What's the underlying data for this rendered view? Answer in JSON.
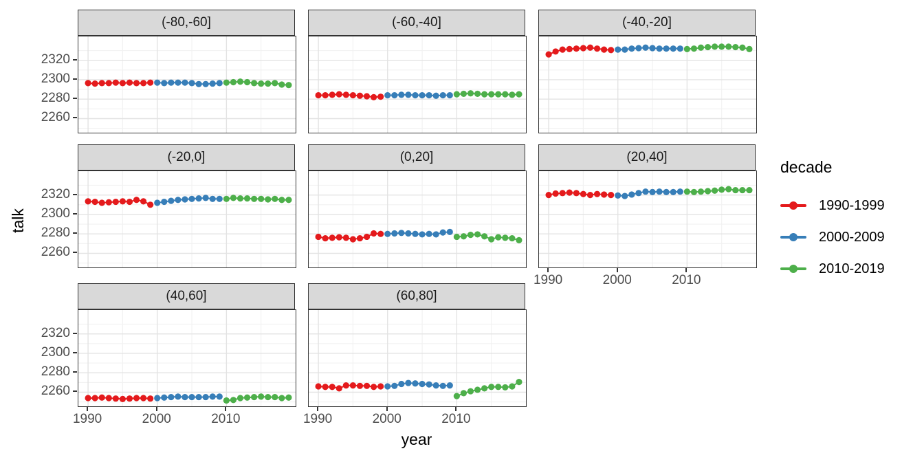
{
  "figure": {
    "y_axis_title": "talk",
    "x_axis_title": "year",
    "legend": {
      "title": "decade",
      "items": [
        {
          "label": "1990-1999",
          "color": "#E41A1C"
        },
        {
          "label": "2000-2009",
          "color": "#377EB8"
        },
        {
          "label": "2010-2019",
          "color": "#4DAF4A"
        }
      ]
    },
    "colors": {
      "strip_background": "#d9d9d9",
      "panel_border": "#333333",
      "grid_major": "#e3e3e3",
      "grid_minor": "#f2f2f2",
      "tick_label": "#4d4d4d"
    }
  },
  "chart_data": {
    "type": "scatter",
    "title": "",
    "xlabel": "year",
    "ylabel": "talk",
    "legend_title": "decade",
    "legend_position": "right",
    "grid": true,
    "facet_labels": [
      "(-80,-60]",
      "(-60,-40]",
      "(-40,-20]",
      "(-20,0]",
      "(0,20]",
      "(20,40]",
      "(40,60]",
      "(60,80]"
    ],
    "x_ticks": [
      1990,
      2000,
      2010
    ],
    "x_minor_ticks": [
      1995,
      2005,
      2015
    ],
    "y_ticks": [
      2260,
      2280,
      2300,
      2320
    ],
    "y_minor_ticks": [
      2250,
      2270,
      2290,
      2310,
      2330
    ],
    "xlim": [
      1988.6,
      2020.0
    ],
    "ylim": [
      2245.5,
      2344.5
    ],
    "years_by_decade": {
      "1990-1999": [
        1990,
        1991,
        1992,
        1993,
        1994,
        1995,
        1996,
        1997,
        1998,
        1999
      ],
      "2000-2009": [
        2000,
        2001,
        2002,
        2003,
        2004,
        2005,
        2006,
        2007,
        2008,
        2009
      ],
      "2010-2019": [
        2010,
        2011,
        2012,
        2013,
        2014,
        2015,
        2016,
        2017,
        2018,
        2019
      ]
    },
    "facets": [
      {
        "label": "(-80,-60]",
        "series": [
          {
            "name": "1990-1999",
            "y": [
              2296.5,
              2296,
              2296.5,
              2296.5,
              2297,
              2296.5,
              2297,
              2296.5,
              2296.5,
              2297
            ]
          },
          {
            "name": "2000-2009",
            "y": [
              2297,
              2296.5,
              2297,
              2297,
              2297,
              2296.5,
              2295.5,
              2295.5,
              2296,
              2296.5
            ]
          },
          {
            "name": "2010-2019",
            "y": [
              2297,
              2297.5,
              2298,
              2297.5,
              2296.5,
              2296,
              2296,
              2296.5,
              2295,
              2294.5
            ]
          }
        ]
      },
      {
        "label": "(-60,-40]",
        "series": [
          {
            "name": "1990-1999",
            "y": [
              2284,
              2284,
              2284.5,
              2285,
              2284.5,
              2284,
              2283.5,
              2283,
              2282,
              2282.5
            ]
          },
          {
            "name": "2000-2009",
            "y": [
              2284,
              2284,
              2284.5,
              2284.5,
              2284,
              2284,
              2284,
              2283.5,
              2284,
              2284
            ]
          },
          {
            "name": "2010-2019",
            "y": [
              2285,
              2285.5,
              2286,
              2285.5,
              2285,
              2285,
              2285,
              2285,
              2284.5,
              2285
            ]
          }
        ]
      },
      {
        "label": "(-40,-20]",
        "series": [
          {
            "name": "1990-1999",
            "y": [
              2326,
              2329,
              2331,
              2331.5,
              2332,
              2332.5,
              2333,
              2332,
              2331,
              2330.5
            ]
          },
          {
            "name": "2000-2009",
            "y": [
              2331,
              2331,
              2332,
              2332.5,
              2333,
              2332.5,
              2332,
              2332,
              2332,
              2332
            ]
          },
          {
            "name": "2010-2019",
            "y": [
              2331.5,
              2332,
              2333,
              2333.5,
              2334,
              2334,
              2334,
              2333.5,
              2333,
              2331.5
            ]
          }
        ]
      },
      {
        "label": "(-20,0]",
        "series": [
          {
            "name": "1990-1999",
            "y": [
              2313.5,
              2313,
              2312,
              2312.5,
              2313,
              2313.5,
              2313,
              2315,
              2313.5,
              2310
            ]
          },
          {
            "name": "2000-2009",
            "y": [
              2312,
              2313,
              2314,
              2315,
              2315.5,
              2316,
              2316.5,
              2317,
              2316,
              2316
            ]
          },
          {
            "name": "2010-2019",
            "y": [
              2316,
              2317,
              2316.5,
              2316.5,
              2316,
              2316,
              2315.5,
              2316,
              2315,
              2315
            ]
          }
        ]
      },
      {
        "label": "(0,20]",
        "series": [
          {
            "name": "1990-1999",
            "y": [
              2277,
              2275.5,
              2276,
              2276.5,
              2276,
              2274.5,
              2275.5,
              2277,
              2280.5,
              2280
            ]
          },
          {
            "name": "2000-2009",
            "y": [
              2280,
              2280.5,
              2281,
              2280.5,
              2280,
              2279.5,
              2280,
              2279.5,
              2281.5,
              2282
            ]
          },
          {
            "name": "2010-2019",
            "y": [
              2277,
              2277.5,
              2279,
              2279.5,
              2277.5,
              2274.5,
              2276.5,
              2276,
              2275.5,
              2273.5
            ]
          }
        ]
      },
      {
        "label": "(20,40]",
        "series": [
          {
            "name": "1990-1999",
            "y": [
              2320,
              2321.5,
              2322,
              2322.5,
              2322,
              2321,
              2320,
              2321,
              2320.5,
              2320
            ]
          },
          {
            "name": "2000-2009",
            "y": [
              2319.5,
              2319,
              2320.5,
              2322,
              2323.5,
              2323,
              2323.5,
              2323,
              2323,
              2323.5
            ]
          },
          {
            "name": "2010-2019",
            "y": [
              2323.5,
              2323,
              2323.5,
              2324,
              2324.5,
              2325.5,
              2326,
              2325,
              2325,
              2325
            ]
          }
        ]
      },
      {
        "label": "(40,60]",
        "series": [
          {
            "name": "1990-1999",
            "y": [
              2254,
              2254,
              2254.5,
              2254,
              2253.5,
              2253,
              2253.5,
              2254,
              2254,
              2253.5
            ]
          },
          {
            "name": "2000-2009",
            "y": [
              2254,
              2254.5,
              2255,
              2255.5,
              2255,
              2255,
              2255,
              2255,
              2255.5,
              2255.5
            ]
          },
          {
            "name": "2010-2019",
            "y": [
              2251.5,
              2252,
              2254,
              2254.5,
              2255,
              2255.5,
              2255,
              2255,
              2254,
              2254.5
            ]
          }
        ]
      },
      {
        "label": "(60,80]",
        "series": [
          {
            "name": "1990-1999",
            "y": [
              2266,
              2265.5,
              2265.5,
              2264,
              2267,
              2267,
              2266.5,
              2266.5,
              2265.5,
              2266
            ]
          },
          {
            "name": "2000-2009",
            "y": [
              2266,
              2266.5,
              2268.5,
              2269.5,
              2269,
              2268.5,
              2268,
              2267,
              2266.5,
              2267
            ]
          },
          {
            "name": "2010-2019",
            "y": [
              2256,
              2259,
              2261,
              2262.5,
              2264,
              2265.5,
              2265.5,
              2265,
              2266,
              2270.5
            ]
          }
        ]
      }
    ]
  }
}
